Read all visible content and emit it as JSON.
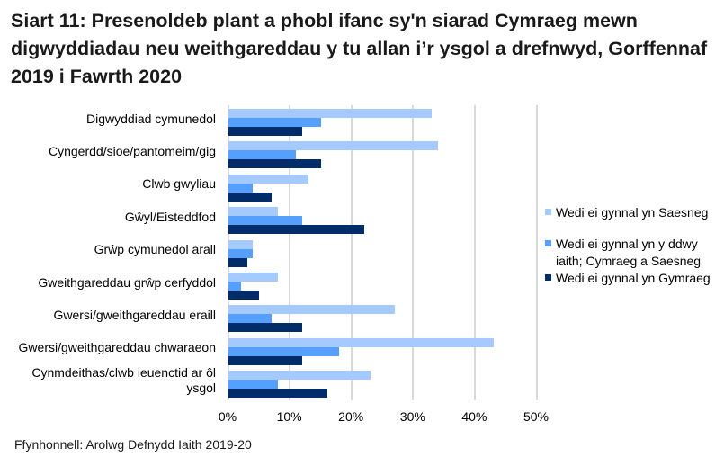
{
  "title": "Siart 11: Presenoldeb plant a phobl ifanc sy'n siarad Cymraeg mewn digwyddiadau neu weithgareddau y tu allan i’r ysgol a drefnwyd, Gorffennaf 2019 i Fawrth 2020",
  "source": "Ffynhonnell: Arolwg Defnydd Iaith 2019-20",
  "colors": {
    "saesneg": "#A4CAFF",
    "ddwy_iaith": "#559FFF",
    "cymraeg": "#002D6A",
    "grid": "#D9D9D9"
  },
  "legend": [
    {
      "label": "Wedi ei gynnal yn Saesneg",
      "color": "#A4CAFF"
    },
    {
      "label": "Wedi ei gynnal yn y ddwy iaith; Cymraeg a Saesneg",
      "color": "#559FFF"
    },
    {
      "label": "Wedi ei gynnal yn Gymraeg",
      "color": "#002D6A"
    }
  ],
  "axis": {
    "ticks": [
      "0%",
      "10%",
      "20%",
      "30%",
      "40%",
      "50%"
    ]
  },
  "chart_data": {
    "type": "bar",
    "orientation": "horizontal",
    "title": "Siart 11: Presenoldeb plant a phobl ifanc sy'n siarad Cymraeg mewn digwyddiadau neu weithgareddau y tu allan i’r ysgol a drefnwyd, Gorffennaf 2019 i Fawrth 2020",
    "xlabel": "",
    "ylabel": "",
    "xlim": [
      0,
      50
    ],
    "x_tick_labels": [
      "0%",
      "10%",
      "20%",
      "30%",
      "40%",
      "50%"
    ],
    "grid": true,
    "legend_position": "right",
    "categories": [
      "Digwyddiad cymunedol",
      "Cyngerdd/sioe/pantomeim/gig",
      "Clwb gwyliau",
      "Gŵyl/Eisteddfod",
      "Grŵp cymunedol arall",
      "Gweithgareddau grŵp cerfyddol",
      "Gwersi/gweithgareddau eraill",
      "Gwersi/gweithgareddau chwaraeon",
      "Cynmdeithas/clwb ieuenctid ar ôl ysgol"
    ],
    "series": [
      {
        "name": "Wedi ei gynnal yn Saesneg",
        "color": "#A4CAFF",
        "values": [
          33,
          34,
          13,
          8,
          4,
          8,
          27,
          43,
          23
        ]
      },
      {
        "name": "Wedi ei gynnal yn y ddwy iaith; Cymraeg a Saesneg",
        "color": "#559FFF",
        "values": [
          15,
          11,
          4,
          12,
          4,
          2,
          7,
          18,
          8
        ]
      },
      {
        "name": "Wedi ei gynnal yn Gymraeg",
        "color": "#002D6A",
        "values": [
          12,
          15,
          7,
          22,
          3,
          5,
          12,
          12,
          16
        ]
      }
    ],
    "source": "Ffynhonnell: Arolwg Defnydd Iaith 2019-20"
  }
}
